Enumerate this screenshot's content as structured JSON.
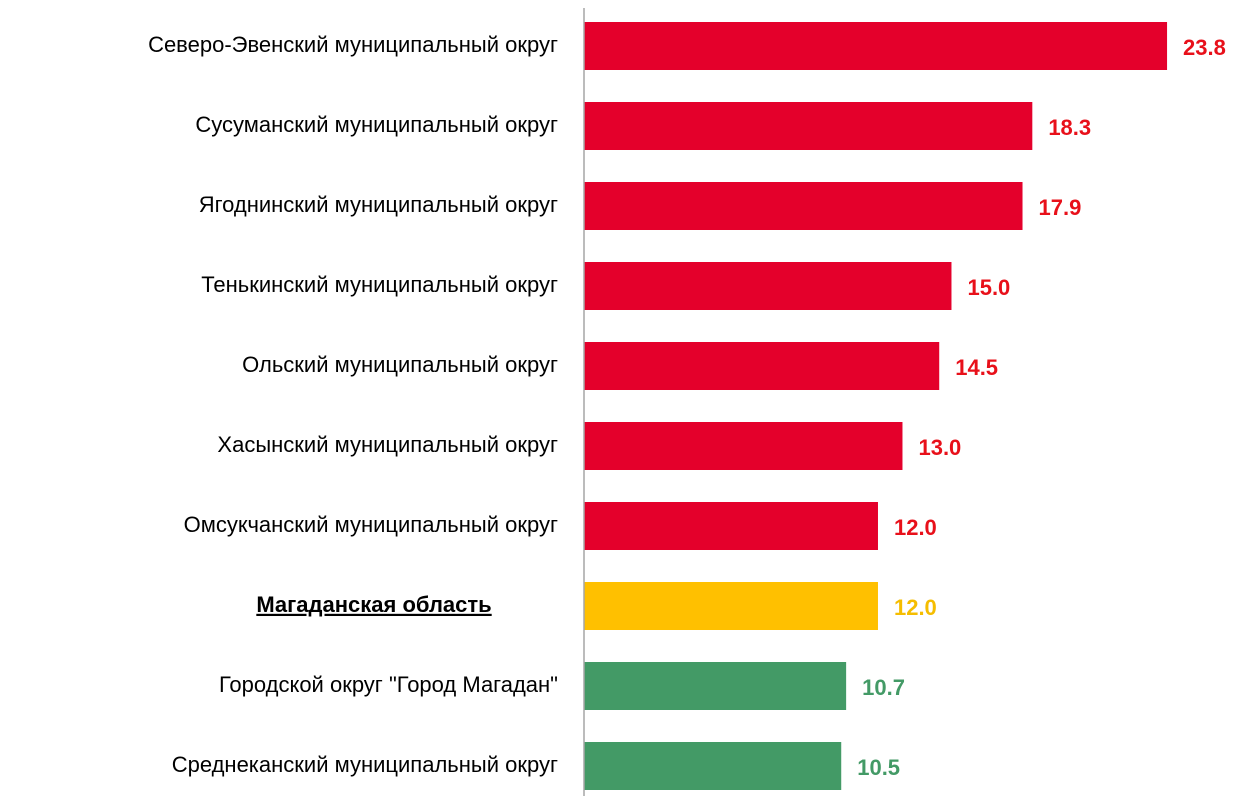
{
  "chart_data": {
    "type": "bar",
    "orientation": "horizontal",
    "categories": [
      "Северо-Эвенский муниципальный округ",
      "Сусуманский муниципальный округ",
      "Ягоднинский муниципальный округ",
      "Тенькинский муниципальный округ",
      "Ольский муниципальный округ",
      "Хасынский муниципальный округ",
      "Омсукчанский муниципальный округ",
      "Магаданская область",
      "Городской округ \"Город Магадан\"",
      "Среднеканский муниципальный округ"
    ],
    "values": [
      23.8,
      18.3,
      17.9,
      15.0,
      14.5,
      13.0,
      12.0,
      12.0,
      10.7,
      10.5
    ],
    "value_labels": [
      "23.8",
      "18.3",
      "17.9",
      "15.0",
      "14.5",
      "13.0",
      "12.0",
      "12.0",
      "10.7",
      "10.5"
    ],
    "colors": [
      "#e4002b",
      "#e4002b",
      "#e4002b",
      "#e4002b",
      "#e4002b",
      "#e4002b",
      "#e4002b",
      "#ffc000",
      "#439a66",
      "#439a66"
    ],
    "label_colors": [
      "#e8101a",
      "#e8101a",
      "#e8101a",
      "#e8101a",
      "#e8101a",
      "#e8101a",
      "#e8101a",
      "#f5bd00",
      "#439a66",
      "#439a66"
    ],
    "emphasized": [
      false,
      false,
      false,
      false,
      false,
      false,
      false,
      true,
      false,
      false
    ],
    "xlim": [
      0,
      26.9
    ]
  }
}
